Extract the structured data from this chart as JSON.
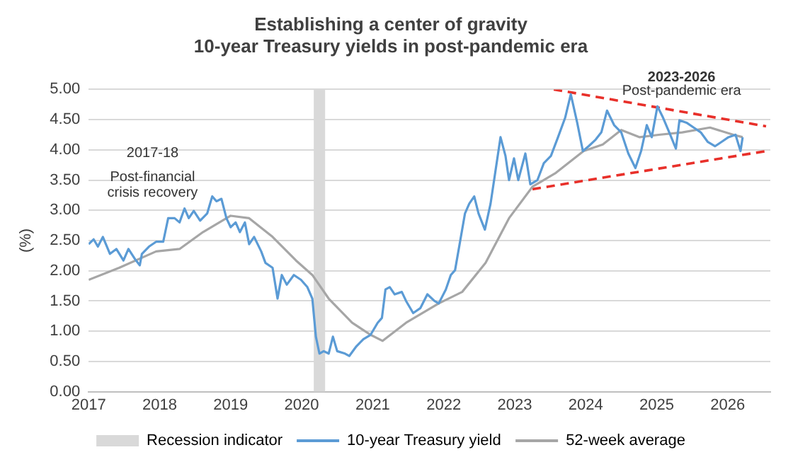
{
  "chart_data": {
    "type": "line",
    "title": "Establishing a center of gravity",
    "subtitle": "10-year Treasury yields in post-pandemic era",
    "ylabel": "(%)",
    "xlim": [
      2017,
      2026.6
    ],
    "xticks": [
      2017,
      2018,
      2019,
      2020,
      2021,
      2022,
      2023,
      2024,
      2025,
      2026
    ],
    "ylim": [
      0,
      5
    ],
    "yticks": [
      {
        "value": 0,
        "label": "0.00"
      },
      {
        "value": 0.5,
        "label": "0.50"
      },
      {
        "value": 1,
        "label": "1.00"
      },
      {
        "value": 1.5,
        "label": "1.50"
      },
      {
        "value": 2,
        "label": "2.00"
      },
      {
        "value": 2.5,
        "label": "2.50"
      },
      {
        "value": 3,
        "label": "3.00"
      },
      {
        "value": 3.5,
        "label": "3.50"
      },
      {
        "value": 4,
        "label": "4.00"
      },
      {
        "value": 4.5,
        "label": "4.50"
      },
      {
        "value": 5,
        "label": "5.00"
      }
    ],
    "grid": "y",
    "legend": "bottom",
    "marker": "none",
    "bands": [
      {
        "axis": "x",
        "from": 2020.17,
        "to": 2020.33,
        "label": "Recession indicator",
        "color": "#d9d9d9"
      }
    ],
    "annotations": [
      "2017-18",
      "Post-financial crisis recovery",
      "2023-2026",
      "Post-pandemic era"
    ],
    "series": [
      {
        "name": "10-year Treasury yield",
        "color": "#5b9bd5",
        "line_style": "solid",
        "x": [
          2017.0,
          2017.07,
          2017.13,
          2017.2,
          2017.3,
          2017.39,
          2017.49,
          2017.56,
          2017.66,
          2017.72,
          2017.75,
          2017.85,
          2017.95,
          2018.05,
          2018.12,
          2018.21,
          2018.28,
          2018.35,
          2018.41,
          2018.48,
          2018.57,
          2018.67,
          2018.74,
          2018.8,
          2018.87,
          2018.94,
          2019.0,
          2019.07,
          2019.13,
          2019.2,
          2019.26,
          2019.33,
          2019.43,
          2019.49,
          2019.59,
          2019.66,
          2019.72,
          2019.79,
          2019.89,
          2019.99,
          2020.08,
          2020.15,
          2020.2,
          2020.25,
          2020.31,
          2020.38,
          2020.44,
          2020.5,
          2020.61,
          2020.67,
          2020.77,
          2020.87,
          2020.97,
          2021.07,
          2021.13,
          2021.18,
          2021.24,
          2021.31,
          2021.41,
          2021.47,
          2021.57,
          2021.67,
          2021.77,
          2021.87,
          2021.93,
          2022.03,
          2022.1,
          2022.16,
          2022.23,
          2022.3,
          2022.36,
          2022.43,
          2022.49,
          2022.58,
          2022.66,
          2022.72,
          2022.8,
          2022.87,
          2022.92,
          2022.99,
          2023.05,
          2023.15,
          2023.22,
          2023.32,
          2023.41,
          2023.51,
          2023.61,
          2023.71,
          2023.79,
          2023.88,
          2023.96,
          2024.04,
          2024.14,
          2024.22,
          2024.3,
          2024.4,
          2024.5,
          2024.6,
          2024.7,
          2024.78,
          2024.86,
          2024.93,
          2025.01,
          2025.09,
          2025.19,
          2025.27,
          2025.32,
          2025.42,
          2025.52,
          2025.62,
          2025.72,
          2025.82,
          2025.91,
          2026.01,
          2026.11,
          2026.18,
          2026.21
        ],
        "values": [
          2.44,
          2.52,
          2.4,
          2.56,
          2.28,
          2.36,
          2.17,
          2.36,
          2.18,
          2.09,
          2.28,
          2.4,
          2.48,
          2.48,
          2.87,
          2.87,
          2.8,
          3.03,
          2.87,
          2.99,
          2.83,
          2.95,
          3.23,
          3.15,
          3.19,
          2.87,
          2.72,
          2.8,
          2.64,
          2.8,
          2.44,
          2.56,
          2.32,
          2.13,
          2.05,
          1.54,
          1.93,
          1.77,
          1.93,
          1.85,
          1.73,
          1.54,
          0.91,
          0.63,
          0.67,
          0.63,
          0.91,
          0.67,
          0.63,
          0.59,
          0.75,
          0.87,
          0.94,
          1.14,
          1.22,
          1.69,
          1.73,
          1.61,
          1.65,
          1.5,
          1.3,
          1.38,
          1.61,
          1.5,
          1.46,
          1.69,
          1.93,
          2.01,
          2.48,
          2.95,
          3.11,
          3.23,
          2.95,
          2.68,
          3.11,
          3.58,
          4.21,
          3.9,
          3.5,
          3.86,
          3.5,
          3.94,
          3.43,
          3.5,
          3.78,
          3.9,
          4.21,
          4.53,
          4.92,
          4.45,
          3.98,
          4.06,
          4.17,
          4.29,
          4.65,
          4.41,
          4.29,
          3.94,
          3.7,
          3.98,
          4.41,
          4.21,
          4.72,
          4.53,
          4.25,
          4.02,
          4.49,
          4.45,
          4.37,
          4.29,
          4.13,
          4.06,
          4.13,
          4.21,
          4.25,
          3.98,
          4.21
        ]
      },
      {
        "name": "52-week average",
        "color": "#a6a6a6",
        "line_style": "solid",
        "x": [
          2017.0,
          2017.43,
          2017.95,
          2018.28,
          2018.61,
          2019.0,
          2019.26,
          2019.59,
          2019.92,
          2020.15,
          2020.38,
          2020.71,
          2020.97,
          2021.14,
          2021.47,
          2021.93,
          2022.26,
          2022.59,
          2022.92,
          2023.25,
          2023.58,
          2023.97,
          2024.24,
          2024.5,
          2024.76,
          2025.03,
          2025.36,
          2025.75,
          2026.08,
          2026.21
        ],
        "values": [
          1.85,
          2.05,
          2.32,
          2.36,
          2.64,
          2.91,
          2.87,
          2.56,
          2.17,
          1.93,
          1.54,
          1.14,
          0.94,
          0.84,
          1.14,
          1.46,
          1.65,
          2.13,
          2.87,
          3.39,
          3.62,
          3.98,
          4.09,
          4.33,
          4.21,
          4.25,
          4.29,
          4.37,
          4.25,
          4.21
        ]
      },
      {
        "color": "#e8302a",
        "line_style": "dashed",
        "x": [
          2023.55,
          2026.54
        ],
        "values": [
          5.0,
          4.39
        ]
      },
      {
        "color": "#e8302a",
        "line_style": "dashed",
        "x": [
          2023.25,
          2026.54
        ],
        "values": [
          3.35,
          3.98
        ]
      }
    ]
  }
}
